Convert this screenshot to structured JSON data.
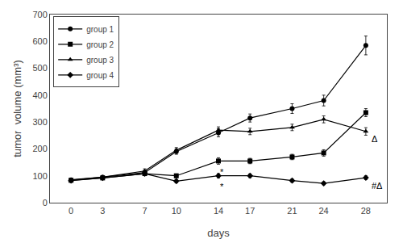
{
  "chart_data": {
    "type": "line",
    "x": [
      0,
      3,
      7,
      10,
      14,
      17,
      21,
      24,
      28
    ],
    "series": [
      {
        "name": "group 1",
        "color": "#000000",
        "marker": "circle",
        "values": [
          85,
          95,
          112,
          190,
          260,
          315,
          350,
          380,
          585
        ],
        "errors": [
          5,
          5,
          8,
          10,
          15,
          15,
          18,
          20,
          35
        ]
      },
      {
        "name": "group 2",
        "color": "#000000",
        "marker": "square",
        "values": [
          83,
          92,
          108,
          100,
          155,
          155,
          170,
          185,
          335
        ],
        "errors": [
          4,
          5,
          7,
          7,
          12,
          10,
          10,
          12,
          15
        ]
      },
      {
        "name": "group 3",
        "color": "#000000",
        "marker": "triangle-up",
        "values": [
          84,
          95,
          118,
          195,
          270,
          265,
          280,
          310,
          265
        ],
        "errors": [
          4,
          6,
          8,
          10,
          12,
          12,
          12,
          13,
          14
        ]
      },
      {
        "name": "group 4",
        "color": "#000000",
        "marker": "diamond",
        "values": [
          82,
          92,
          108,
          80,
          100,
          100,
          82,
          72,
          93
        ],
        "errors": [
          4,
          5,
          6,
          6,
          8,
          7,
          6,
          5,
          7
        ]
      }
    ],
    "annotations": [
      {
        "text": "*",
        "x": 14,
        "y": 138
      },
      {
        "text": "*",
        "x": 14,
        "y": 83
      },
      {
        "text": "#Δ",
        "x": 28.4,
        "y": 88
      },
      {
        "text": "Δ",
        "x": 28.4,
        "y": 262
      }
    ],
    "xlabel": "days",
    "ylabel": "tumor  volume (mm³)",
    "xlim": [
      -2,
      30
    ],
    "xticks": [
      0,
      3,
      7,
      10,
      14,
      17,
      21,
      24,
      28
    ],
    "ylim": [
      0,
      700
    ],
    "yticks": [
      0,
      100,
      200,
      300,
      400,
      500,
      600,
      700
    ],
    "grid": false,
    "legend": "upper left"
  }
}
